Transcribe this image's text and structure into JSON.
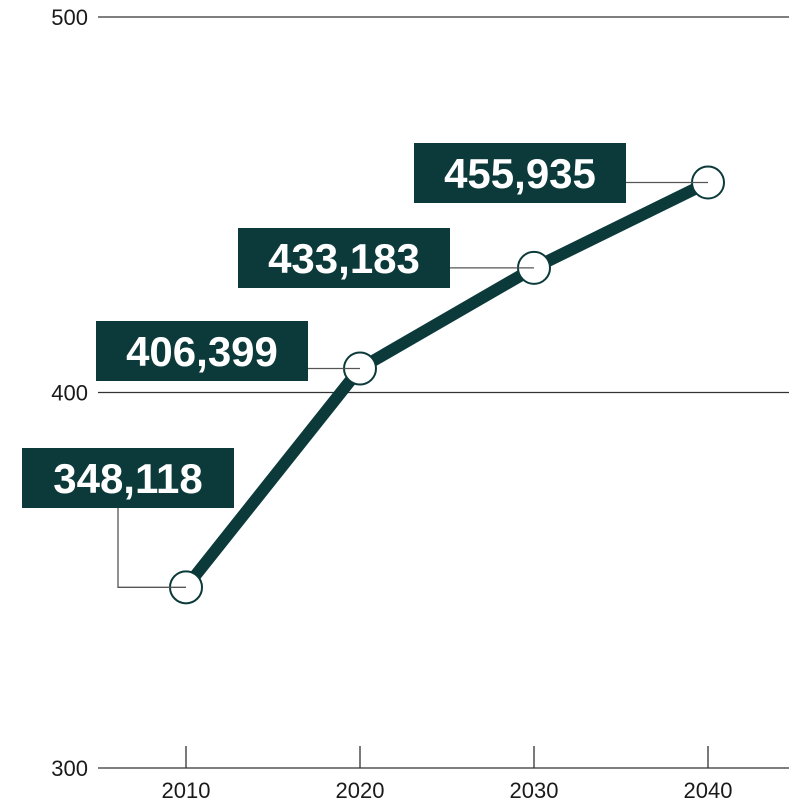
{
  "chart_data": {
    "type": "line",
    "x": [
      "2010",
      "2020",
      "2030",
      "2040"
    ],
    "series": [
      {
        "values": [
          348118,
          406399,
          433183,
          455935
        ],
        "labels": [
          "348,118",
          "406,399",
          "433,183",
          "455,935"
        ]
      }
    ],
    "yticks": [
      {
        "value": 300000,
        "label": "300"
      },
      {
        "value": 400000,
        "label": "400"
      },
      {
        "value": 500000,
        "label": "500"
      }
    ],
    "ylim": [
      300000,
      500000
    ],
    "grid": true,
    "colors": {
      "line": "#0c3a3a",
      "label_bg": "#0c3a3a",
      "marker_fill": "#ffffff",
      "grid": "#333333"
    }
  }
}
